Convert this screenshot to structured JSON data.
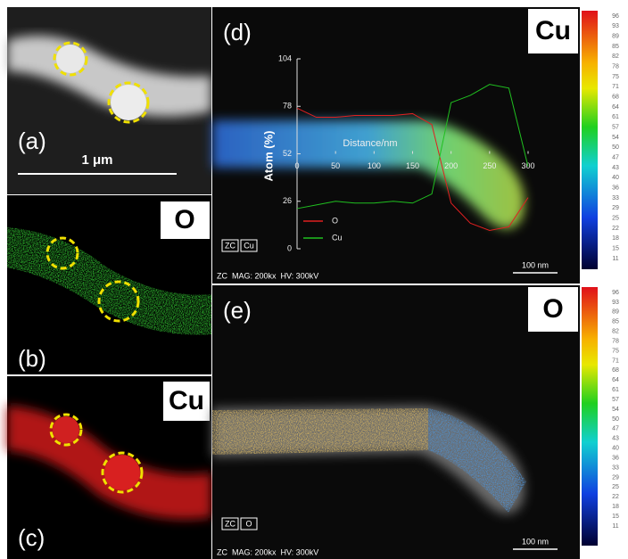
{
  "panels": {
    "a": {
      "label": "(a)",
      "scale_bar": "1 μm"
    },
    "b": {
      "label": "(b)",
      "element": "O"
    },
    "c": {
      "label": "(c)",
      "element": "Cu"
    },
    "d": {
      "label": "(d)",
      "element": "Cu",
      "mode": "ZC",
      "mode_element": "Cu",
      "info": "ZC  MAG: 200kx  HV: 300kV",
      "scale_bar": "100 nm"
    },
    "e": {
      "label": "(e)",
      "element": "O",
      "mode": "ZC",
      "mode_element": "O",
      "info": "ZC  MAG: 200kx  HV: 300kV",
      "scale_bar": "100 nm"
    }
  },
  "colorbar": [
    96,
    93,
    89,
    85,
    82,
    78,
    75,
    71,
    68,
    64,
    61,
    57,
    54,
    50,
    47,
    43,
    40,
    36,
    33,
    29,
    25,
    22,
    18,
    15,
    11
  ],
  "chart_data": {
    "type": "line",
    "x_label": "Distance/nm",
    "y_label": "Atom (%)",
    "x": [
      0,
      25,
      50,
      75,
      100,
      125,
      150,
      175,
      200,
      225,
      250,
      275,
      300
    ],
    "series": [
      {
        "name": "O",
        "color": "#e02020",
        "values": [
          77,
          72,
          72,
          73,
          73,
          73,
          74,
          68,
          25,
          14,
          10,
          12,
          28
        ]
      },
      {
        "name": "Cu",
        "color": "#20c020",
        "values": [
          22,
          24,
          26,
          25,
          25,
          26,
          25,
          30,
          80,
          84,
          90,
          88,
          45
        ]
      }
    ],
    "xlim": [
      0,
      300
    ],
    "ylim": [
      0,
      104
    ],
    "xticks": [
      0,
      50,
      100,
      150,
      200,
      250,
      300
    ],
    "yticks": [
      0,
      26,
      52,
      78,
      104
    ]
  }
}
